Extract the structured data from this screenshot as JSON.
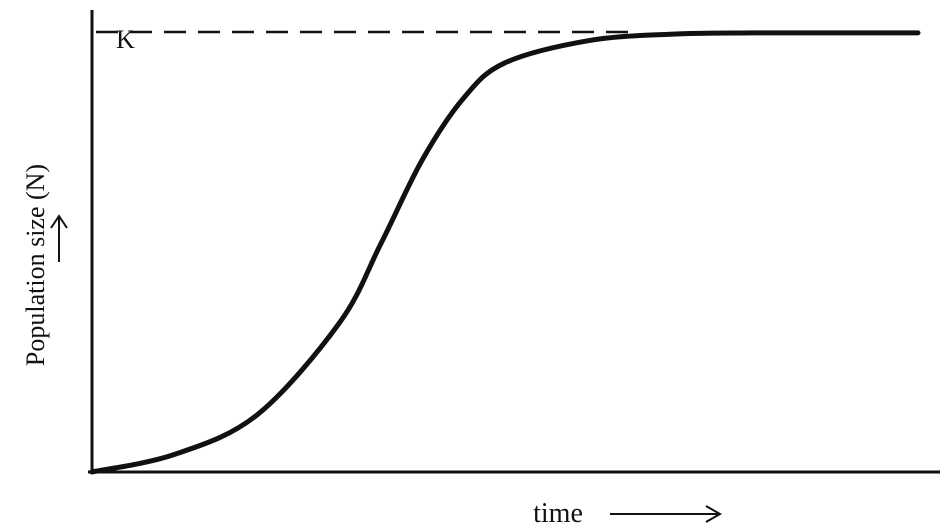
{
  "chart_data": {
    "type": "line",
    "title": "",
    "xlabel": "time",
    "ylabel": "Population size (N)",
    "carrying_capacity_label": "K",
    "carrying_capacity_value": 1.0,
    "xlim": [
      0,
      10
    ],
    "ylim": [
      0,
      1.05
    ],
    "grid": false,
    "x": [
      0,
      1,
      2,
      3,
      3.5,
      4,
      4.5,
      5,
      6,
      7,
      8,
      9,
      10
    ],
    "series": [
      {
        "values": [
          0.0,
          0.04,
          0.13,
          0.34,
          0.52,
          0.71,
          0.85,
          0.93,
          0.98,
          0.995,
          0.998,
          0.998,
          0.998
        ]
      }
    ],
    "colors": {
      "line": "#111111",
      "axis": "#111111",
      "background": "#ffffff"
    }
  }
}
